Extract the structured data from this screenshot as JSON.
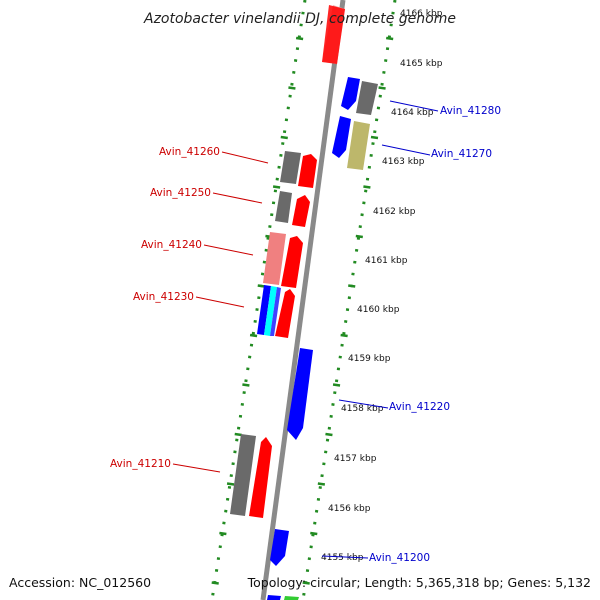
{
  "title": "Azotobacter vinelandii DJ, complete genome",
  "accession": "Accession: NC_012560",
  "summary": "Topology: circular; Length: 5,365,318 bp; Genes: 5,132",
  "top_clipped_label": "4166 kbp",
  "scale_labels": [
    "4165 kbp",
    "4164 kbp",
    "4163 kbp",
    "4162 kbp",
    "4161 kbp",
    "4160 kbp",
    "4159 kbp",
    "4158 kbp",
    "4157 kbp",
    "4156 kbp",
    "4155 kbp"
  ],
  "gene_labels_left": [
    "Avin_41260",
    "Avin_41250",
    "Avin_41240",
    "Avin_41230",
    "Avin_41210"
  ],
  "gene_labels_right": [
    "Avin_41280",
    "Avin_41270",
    "Avin_41220",
    "Avin_41200"
  ],
  "colors": {
    "forward_red": "#ff0000",
    "light_red": "#f08080",
    "reverse_blue": "#0000ff",
    "other_gray": "#666666",
    "olive": "#bdb76b",
    "cyan": "#00ffff",
    "green": "#33cc33",
    "ruler_green": "#228b22",
    "label_red": "#cc0000",
    "label_blue": "#0000cc"
  }
}
